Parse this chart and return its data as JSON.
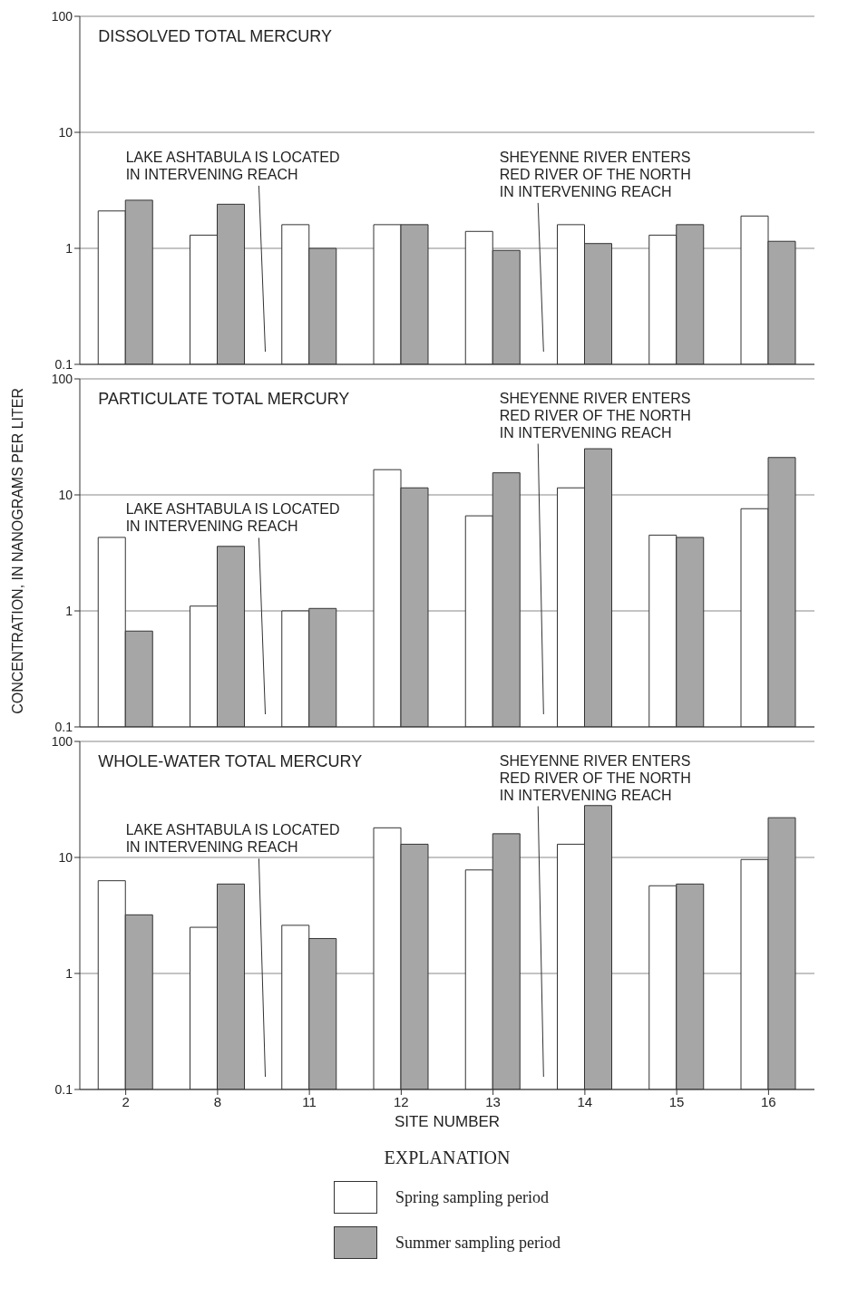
{
  "chart_data": [
    {
      "type": "bar",
      "title": "DISSOLVED TOTAL MERCURY",
      "categories": [
        "2",
        "8",
        "11",
        "12",
        "13",
        "14",
        "15",
        "16"
      ],
      "series": [
        {
          "color": "#ffffff",
          "values": [
            2.1,
            1.3,
            1.6,
            1.6,
            1.4,
            1.6,
            1.3,
            1.9
          ]
        },
        {
          "color": "#a6a6a6",
          "values": [
            2.6,
            2.4,
            1.0,
            1.6,
            0.96,
            1.1,
            1.6,
            1.15
          ]
        }
      ],
      "annotations": [
        "LAKE ASHTABULA IS LOCATED\nIN INTERVENING REACH",
        "SHEYENNE RIVER ENTERS\nRED RIVER OF THE NORTH\nIN INTERVENING REACH"
      ],
      "log": "y",
      "ylim": [
        0.1,
        100
      ],
      "yticks": [
        0.1,
        1,
        10,
        100
      ],
      "grid": "y",
      "tick_labels": "y"
    },
    {
      "type": "bar",
      "title": "PARTICULATE TOTAL MERCURY",
      "ylabel": "CONCENTRATION, IN NANOGRAMS PER LITER",
      "categories": [
        "2",
        "8",
        "11",
        "12",
        "13",
        "14",
        "15",
        "16"
      ],
      "series": [
        {
          "color": "#ffffff",
          "values": [
            4.3,
            1.1,
            1.0,
            16.5,
            6.6,
            11.5,
            4.5,
            7.6
          ]
        },
        {
          "color": "#a6a6a6",
          "values": [
            0.67,
            3.6,
            1.05,
            11.5,
            15.5,
            25,
            4.3,
            21
          ]
        }
      ],
      "annotations": [
        "LAKE ASHTABULA IS LOCATED\nIN INTERVENING REACH",
        "SHEYENNE RIVER ENTERS\nRED RIVER OF THE NORTH\nIN INTERVENING REACH"
      ],
      "log": "y",
      "ylim": [
        0.1,
        100
      ],
      "yticks": [
        0.1,
        1,
        10,
        100
      ],
      "grid": "y",
      "tick_labels": "y"
    },
    {
      "type": "bar",
      "title": "WHOLE-WATER TOTAL MERCURY",
      "xlabel": "SITE NUMBER",
      "categories": [
        "2",
        "8",
        "11",
        "12",
        "13",
        "14",
        "15",
        "16"
      ],
      "series": [
        {
          "name": "Spring sampling period",
          "color": "#ffffff",
          "values": [
            6.3,
            2.5,
            2.6,
            18,
            7.8,
            13,
            5.7,
            9.6
          ]
        },
        {
          "name": "Summer sampling period",
          "color": "#a6a6a6",
          "values": [
            3.2,
            5.9,
            2.0,
            13,
            16,
            28,
            5.9,
            22
          ]
        }
      ],
      "annotations": [
        "LAKE ASHTABULA IS LOCATED\nIN INTERVENING REACH",
        "SHEYENNE RIVER ENTERS\nRED RIVER OF THE NORTH\nIN INTERVENING REACH"
      ],
      "legend": "bottom",
      "legend_title": "EXPLANATION",
      "log": "y",
      "ylim": [
        0.1,
        100
      ],
      "yticks": [
        0.1,
        1,
        10,
        100
      ],
      "grid": "y"
    }
  ]
}
